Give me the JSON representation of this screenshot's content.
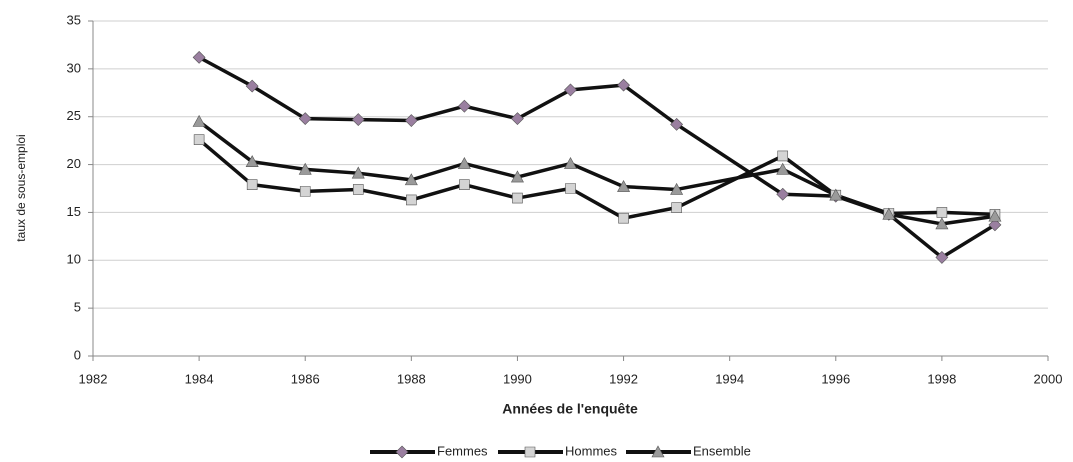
{
  "chart_data": {
    "type": "line",
    "y_label": "taux de sous-emploi",
    "x_label": "Années de l'enquête",
    "x": [
      1984,
      1985,
      1986,
      1987,
      1988,
      1989,
      1990,
      1991,
      1992,
      1993,
      1995,
      1996,
      1997,
      1998,
      1999
    ],
    "series": [
      {
        "name": "Femmes",
        "color": "#111111",
        "marker": "diamond",
        "marker_color": "#9a7fa0",
        "values": [
          31.2,
          28.2,
          24.8,
          24.7,
          24.6,
          26.1,
          24.8,
          27.8,
          28.3,
          24.2,
          16.9,
          16.7,
          14.8,
          10.3,
          13.7
        ]
      },
      {
        "name": "Hommes",
        "color": "#111111",
        "marker": "square",
        "marker_color": "#d4d4d4",
        "values": [
          22.6,
          17.9,
          17.2,
          17.4,
          16.3,
          17.9,
          16.5,
          17.5,
          14.4,
          15.5,
          20.9,
          16.8,
          14.9,
          15.0,
          14.8
        ]
      },
      {
        "name": "Ensemble",
        "color": "#111111",
        "marker": "triangle",
        "marker_color": "#9a9a9a",
        "values": [
          24.5,
          20.3,
          19.5,
          19.1,
          18.4,
          20.1,
          18.7,
          20.1,
          17.7,
          17.4,
          19.5,
          16.8,
          14.8,
          13.8,
          14.6
        ]
      }
    ],
    "xlim": [
      1982,
      2000
    ],
    "xticks": [
      1982,
      1984,
      1986,
      1988,
      1990,
      1992,
      1994,
      1996,
      1998,
      2000
    ],
    "ylim": [
      0,
      35
    ],
    "yticks": [
      0,
      5,
      10,
      15,
      20,
      25,
      30,
      35
    ],
    "grid": true,
    "legend": "bottom"
  }
}
